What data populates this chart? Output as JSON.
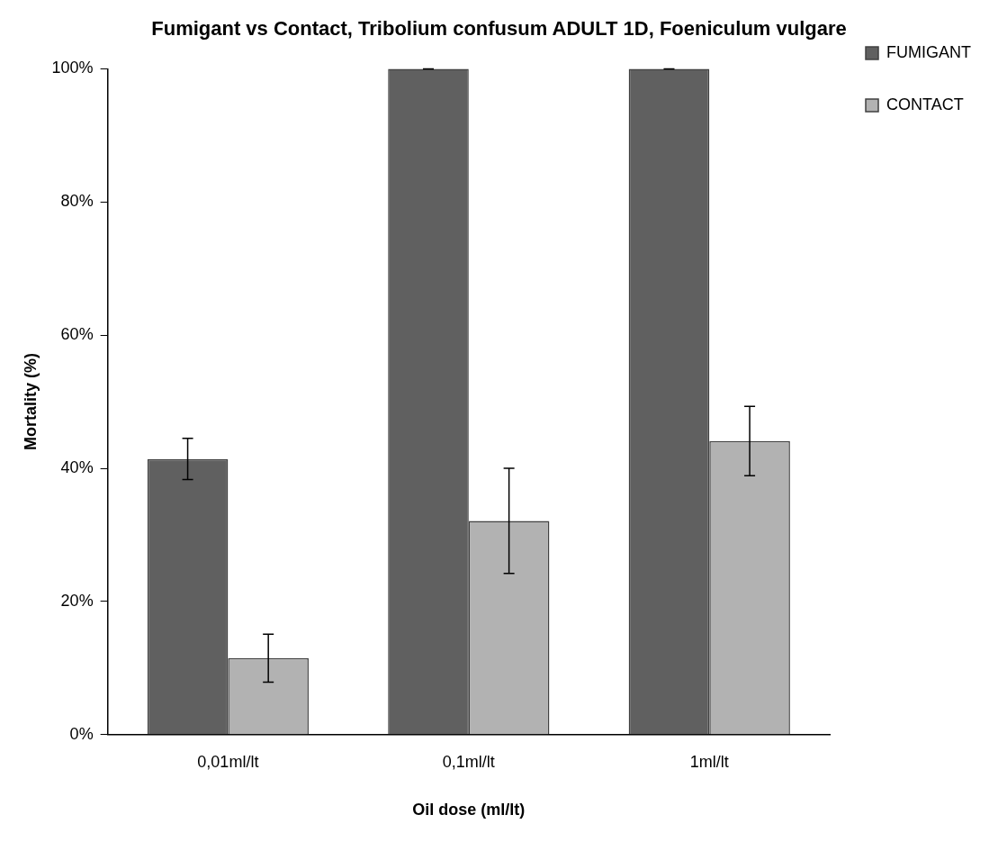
{
  "chart_data": {
    "type": "bar",
    "title": "Fumigant vs Contact, Tribolium confusum ADULT 1D, Foeniculum vulgare",
    "xlabel": "Oil dose (ml/lt)",
    "ylabel": "Mortality (%)",
    "categories": [
      "0,01ml/lt",
      "0,1ml/lt",
      "1ml/lt"
    ],
    "series": [
      {
        "name": "FUMIGANT",
        "color": "#606060",
        "values": [
          41.4,
          100,
          100
        ],
        "errors": [
          3.1,
          0,
          0
        ]
      },
      {
        "name": "CONTACT",
        "color": "#b2b2b2",
        "values": [
          11.5,
          32.1,
          44.1
        ],
        "errors": [
          3.6,
          7.9,
          5.2
        ]
      }
    ],
    "ylim": [
      0,
      100
    ],
    "yticks": [
      {
        "value": 0,
        "label": "0%"
      },
      {
        "value": 20,
        "label": "20%"
      },
      {
        "value": 40,
        "label": "40%"
      },
      {
        "value": 60,
        "label": "60%"
      },
      {
        "value": 80,
        "label": "80%"
      },
      {
        "value": 100,
        "label": "100%"
      }
    ],
    "grid": false,
    "legend": "top right"
  }
}
